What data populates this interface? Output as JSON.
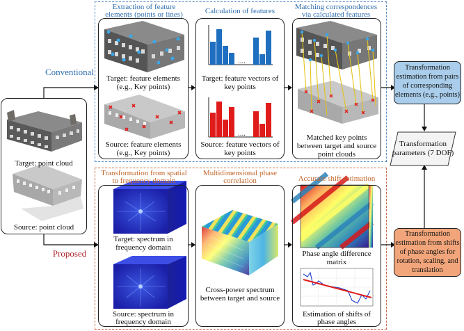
{
  "conventional": {
    "label": "Conventional",
    "step1": {
      "title_l1": "Extraction of feature",
      "title_l2": "elements (points or lines)",
      "target_l1": "Target: feature elements",
      "target_l2": "(e.g., Key points)",
      "source_l1": "Source: feature elements",
      "source_l2": "(e.g., Key points)"
    },
    "step2": {
      "title": "Calculation of features",
      "target_l1": "Target: feature vectors of",
      "target_l2": "key points",
      "source_l1": "Source: feature vectors of",
      "source_l2": "key points"
    },
    "step3": {
      "title_l1": "Matching correspondences",
      "title_l2": "via calculated features",
      "caption_l1": "Matched key points",
      "caption_l2": "between target and source",
      "caption_l3": "point clouds"
    },
    "estimation": {
      "l1": "Transformation",
      "l2": "estimation from pairs",
      "l3": "of corresponding",
      "l4": "elements (e.g., points)"
    }
  },
  "proposed": {
    "label": "Proposed",
    "step1": {
      "title_l1": "Transformation from spatial",
      "title_l2": "to frequency domain",
      "target_l1": "Target: spectrum in",
      "target_l2": "frequency domain",
      "source_l1": "Source: spectrum in",
      "source_l2": "frequency domain"
    },
    "step2": {
      "title_l1": "Multidimensional phase",
      "title_l2": "correlation",
      "caption_l1": "Cross-power spectrum",
      "caption_l2": "between target and source"
    },
    "step3": {
      "title": "Accurate shift estimation",
      "matrix_l1": "Phase angle difference",
      "matrix_l2": "matrix",
      "shift_l1": "Estimation of shifts of",
      "shift_l2": "phase angles"
    },
    "estimation": {
      "l1": "Transformation",
      "l2": "estimation from shifts",
      "l3": "of phase angles for",
      "l4": "rotation, scaling, and",
      "l5": "translation"
    }
  },
  "input": {
    "target": "Target: point cloud",
    "source": "Source: point cloud"
  },
  "output": {
    "l1": "Transformation",
    "l2": "parameters (7 DOF)"
  },
  "colors": {
    "conventional": "#2e6fae",
    "proposed": "#c2652a",
    "proposed_label": "#b3262b",
    "est_blue": "#a9cdea",
    "est_orange": "#f2a57a",
    "bar_blue": "#1f6fc0",
    "bar_red": "#e01b1b"
  }
}
